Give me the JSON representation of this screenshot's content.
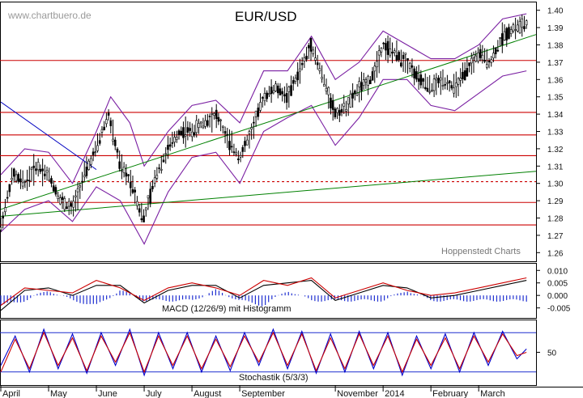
{
  "header": {
    "title": "EUR/USD",
    "watermark": "www.chartbuero.de",
    "credit": "Hoppenstedt Charts"
  },
  "chart_data": [
    {
      "type": "candlestick",
      "name": "price",
      "title": "EUR/USD",
      "ylim": [
        1.255,
        1.405
      ],
      "yticks": [
        "1.40",
        "1.39",
        "1.38",
        "1.37",
        "1.36",
        "1.35",
        "1.34",
        "1.33",
        "1.32",
        "1.31",
        "1.30",
        "1.29",
        "1.28",
        "1.27",
        "1.26"
      ],
      "months": [
        "April",
        "May",
        "June",
        "July",
        "August",
        "September",
        "November",
        "2014",
        "February",
        "March"
      ],
      "month_positions": [
        0,
        1,
        2,
        3,
        4,
        5,
        7,
        8,
        9,
        10
      ],
      "x_range": [
        0,
        11.2
      ],
      "price_path": [
        [
          0,
          1.275
        ],
        [
          0.25,
          1.305
        ],
        [
          0.5,
          1.3
        ],
        [
          0.75,
          1.31
        ],
        [
          1.0,
          1.305
        ],
        [
          1.25,
          1.29
        ],
        [
          1.5,
          1.285
        ],
        [
          1.75,
          1.305
        ],
        [
          2.0,
          1.32
        ],
        [
          2.25,
          1.34
        ],
        [
          2.5,
          1.31
        ],
        [
          2.75,
          1.3
        ],
        [
          2.9,
          1.285
        ],
        [
          3.0,
          1.28
        ],
        [
          3.25,
          1.305
        ],
        [
          3.5,
          1.32
        ],
        [
          3.75,
          1.33
        ],
        [
          4.0,
          1.33
        ],
        [
          4.25,
          1.335
        ],
        [
          4.5,
          1.34
        ],
        [
          4.75,
          1.325
        ],
        [
          5.0,
          1.315
        ],
        [
          5.25,
          1.33
        ],
        [
          5.5,
          1.35
        ],
        [
          5.75,
          1.355
        ],
        [
          6.0,
          1.35
        ],
        [
          6.25,
          1.365
        ],
        [
          6.5,
          1.38
        ],
        [
          6.75,
          1.36
        ],
        [
          7.0,
          1.34
        ],
        [
          7.25,
          1.345
        ],
        [
          7.5,
          1.355
        ],
        [
          7.75,
          1.36
        ],
        [
          8.0,
          1.38
        ],
        [
          8.25,
          1.375
        ],
        [
          8.5,
          1.37
        ],
        [
          8.75,
          1.36
        ],
        [
          9.0,
          1.355
        ],
        [
          9.25,
          1.36
        ],
        [
          9.5,
          1.355
        ],
        [
          9.75,
          1.365
        ],
        [
          10.0,
          1.375
        ],
        [
          10.25,
          1.37
        ],
        [
          10.5,
          1.385
        ],
        [
          10.75,
          1.39
        ],
        [
          11.0,
          1.392
        ]
      ],
      "bollinger_upper": [
        [
          0,
          1.305
        ],
        [
          0.5,
          1.32
        ],
        [
          1.0,
          1.318
        ],
        [
          1.5,
          1.3
        ],
        [
          2.0,
          1.33
        ],
        [
          2.3,
          1.35
        ],
        [
          2.7,
          1.335
        ],
        [
          3.0,
          1.31
        ],
        [
          3.5,
          1.33
        ],
        [
          4.0,
          1.345
        ],
        [
          4.5,
          1.348
        ],
        [
          5.0,
          1.335
        ],
        [
          5.5,
          1.365
        ],
        [
          6.0,
          1.365
        ],
        [
          6.5,
          1.385
        ],
        [
          7.0,
          1.36
        ],
        [
          7.5,
          1.37
        ],
        [
          8.0,
          1.388
        ],
        [
          8.5,
          1.38
        ],
        [
          9.0,
          1.372
        ],
        [
          9.5,
          1.372
        ],
        [
          10.0,
          1.38
        ],
        [
          10.5,
          1.395
        ],
        [
          11.0,
          1.398
        ]
      ],
      "bollinger_lower": [
        [
          0,
          1.272
        ],
        [
          0.5,
          1.285
        ],
        [
          1.0,
          1.29
        ],
        [
          1.5,
          1.278
        ],
        [
          2.0,
          1.298
        ],
        [
          2.5,
          1.29
        ],
        [
          3.0,
          1.265
        ],
        [
          3.5,
          1.295
        ],
        [
          4.0,
          1.315
        ],
        [
          4.5,
          1.318
        ],
        [
          5.0,
          1.3
        ],
        [
          5.5,
          1.33
        ],
        [
          6.0,
          1.338
        ],
        [
          6.5,
          1.345
        ],
        [
          7.0,
          1.322
        ],
        [
          7.5,
          1.338
        ],
        [
          8.0,
          1.36
        ],
        [
          8.5,
          1.36
        ],
        [
          9.0,
          1.345
        ],
        [
          9.5,
          1.342
        ],
        [
          10.0,
          1.352
        ],
        [
          10.5,
          1.362
        ],
        [
          11.0,
          1.365
        ]
      ],
      "horizontal_levels": [
        1.371,
        1.341,
        1.328,
        1.316,
        1.301,
        1.289,
        1.276
      ],
      "dashed_levels": [
        1.301
      ],
      "trendlines": [
        {
          "color": "#008000",
          "points": [
            [
              0,
              1.285
            ],
            [
              11.2,
              1.386
            ]
          ]
        },
        {
          "color": "#008000",
          "points": [
            [
              0,
              1.281
            ],
            [
              11.2,
              1.307
            ]
          ]
        },
        {
          "color": "#0000c0",
          "points": [
            [
              0,
              1.347
            ],
            [
              2.0,
              1.308
            ]
          ]
        }
      ]
    },
    {
      "type": "line",
      "name": "macd",
      "label": "MACD (12/26/9) mit Histogramm",
      "ylim": [
        -0.009,
        0.013
      ],
      "yticks": [
        "0.010",
        "0.005",
        "0.000",
        "-0.005"
      ],
      "series": [
        {
          "color": "#000000",
          "values": [
            [
              0,
              -0.006
            ],
            [
              0.5,
              0.002
            ],
            [
              1.0,
              0.003
            ],
            [
              1.5,
              0.0
            ],
            [
              2.0,
              0.004
            ],
            [
              2.5,
              0.004
            ],
            [
              3.0,
              -0.003
            ],
            [
              3.5,
              0.002
            ],
            [
              4.0,
              0.004
            ],
            [
              4.5,
              0.004
            ],
            [
              5.0,
              -0.001
            ],
            [
              5.5,
              0.004
            ],
            [
              6.0,
              0.005
            ],
            [
              6.5,
              0.006
            ],
            [
              7.0,
              -0.002
            ],
            [
              7.5,
              0.001
            ],
            [
              8.0,
              0.004
            ],
            [
              8.5,
              0.003
            ],
            [
              9.0,
              -0.001
            ],
            [
              9.5,
              0.0
            ],
            [
              10.0,
              0.002
            ],
            [
              10.5,
              0.004
            ],
            [
              11.0,
              0.006
            ]
          ]
        },
        {
          "color": "#cc0000",
          "values": [
            [
              0,
              -0.004
            ],
            [
              0.5,
              0.003
            ],
            [
              1.0,
              0.002
            ],
            [
              1.5,
              0.001
            ],
            [
              2.0,
              0.006
            ],
            [
              2.5,
              0.003
            ],
            [
              3.0,
              -0.002
            ],
            [
              3.5,
              0.003
            ],
            [
              4.0,
              0.005
            ],
            [
              4.5,
              0.003
            ],
            [
              5.0,
              0.0
            ],
            [
              5.5,
              0.006
            ],
            [
              6.0,
              0.004
            ],
            [
              6.5,
              0.007
            ],
            [
              7.0,
              -0.001
            ],
            [
              7.5,
              0.002
            ],
            [
              8.0,
              0.005
            ],
            [
              8.5,
              0.002
            ],
            [
              9.0,
              0.0
            ],
            [
              9.5,
              0.001
            ],
            [
              10.0,
              0.003
            ],
            [
              10.5,
              0.005
            ],
            [
              11.0,
              0.007
            ]
          ]
        }
      ]
    },
    {
      "type": "line",
      "name": "stochastic",
      "label": "Stochastik (5/3/3)",
      "ylim": [
        0,
        100
      ],
      "yticks": [
        "50"
      ],
      "bands": [
        80,
        20
      ],
      "series": [
        {
          "color": "#0000cc",
          "values": [
            [
              0,
              30
            ],
            [
              0.3,
              75
            ],
            [
              0.6,
              20
            ],
            [
              0.9,
              85
            ],
            [
              1.2,
              25
            ],
            [
              1.5,
              78
            ],
            [
              1.8,
              18
            ],
            [
              2.1,
              80
            ],
            [
              2.4,
              30
            ],
            [
              2.7,
              85
            ],
            [
              3.0,
              15
            ],
            [
              3.3,
              80
            ],
            [
              3.6,
              25
            ],
            [
              3.9,
              80
            ],
            [
              4.2,
              20
            ],
            [
              4.5,
              75
            ],
            [
              4.8,
              22
            ],
            [
              5.1,
              80
            ],
            [
              5.4,
              30
            ],
            [
              5.7,
              85
            ],
            [
              6.0,
              25
            ],
            [
              6.3,
              82
            ],
            [
              6.6,
              18
            ],
            [
              6.9,
              78
            ],
            [
              7.2,
              20
            ],
            [
              7.5,
              82
            ],
            [
              7.8,
              25
            ],
            [
              8.1,
              80
            ],
            [
              8.4,
              15
            ],
            [
              8.7,
              75
            ],
            [
              9.0,
              25
            ],
            [
              9.3,
              78
            ],
            [
              9.6,
              20
            ],
            [
              9.9,
              80
            ],
            [
              10.2,
              30
            ],
            [
              10.5,
              82
            ],
            [
              10.8,
              40
            ],
            [
              11.0,
              55
            ]
          ]
        },
        {
          "color": "#cc0000",
          "values": [
            [
              0,
              20
            ],
            [
              0.3,
              70
            ],
            [
              0.6,
              25
            ],
            [
              0.9,
              80
            ],
            [
              1.2,
              30
            ],
            [
              1.5,
              72
            ],
            [
              1.8,
              22
            ],
            [
              2.1,
              75
            ],
            [
              2.4,
              35
            ],
            [
              2.7,
              80
            ],
            [
              3.0,
              20
            ],
            [
              3.3,
              75
            ],
            [
              3.6,
              30
            ],
            [
              3.9,
              75
            ],
            [
              4.2,
              25
            ],
            [
              4.5,
              70
            ],
            [
              4.8,
              28
            ],
            [
              5.1,
              75
            ],
            [
              5.4,
              35
            ],
            [
              5.7,
              80
            ],
            [
              6.0,
              30
            ],
            [
              6.3,
              78
            ],
            [
              6.6,
              22
            ],
            [
              6.9,
              72
            ],
            [
              7.2,
              25
            ],
            [
              7.5,
              78
            ],
            [
              7.8,
              30
            ],
            [
              8.1,
              75
            ],
            [
              8.4,
              20
            ],
            [
              8.7,
              70
            ],
            [
              9.0,
              30
            ],
            [
              9.3,
              72
            ],
            [
              9.6,
              25
            ],
            [
              9.9,
              75
            ],
            [
              10.2,
              35
            ],
            [
              10.5,
              78
            ],
            [
              10.8,
              45
            ],
            [
              11.0,
              50
            ]
          ]
        }
      ]
    }
  ]
}
